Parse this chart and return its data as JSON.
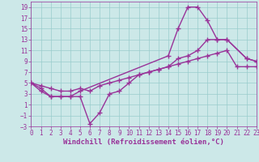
{
  "xlabel": "Windchill (Refroidissement éolien,°C)",
  "ylabel": "",
  "bg_color": "#cce8e8",
  "line_color": "#993399",
  "grid_color": "#99cccc",
  "xlim": [
    0,
    23
  ],
  "ylim": [
    -3,
    20
  ],
  "xticks": [
    0,
    1,
    2,
    3,
    4,
    5,
    6,
    7,
    8,
    9,
    10,
    11,
    12,
    13,
    14,
    15,
    16,
    17,
    18,
    19,
    20,
    21,
    22,
    23
  ],
  "yticks": [
    -3,
    -1,
    1,
    3,
    5,
    7,
    9,
    11,
    13,
    15,
    17,
    19
  ],
  "line1_x": [
    0,
    1,
    2,
    3,
    4,
    5,
    14,
    15,
    16,
    17,
    18,
    19,
    20,
    22,
    23
  ],
  "line1_y": [
    5,
    4,
    2.5,
    2.5,
    2.5,
    3.5,
    10,
    15,
    19,
    19,
    16.5,
    13,
    13,
    9.5,
    9
  ],
  "line2_x": [
    0,
    1,
    2,
    3,
    4,
    5,
    6,
    7,
    8,
    9,
    10,
    11,
    12,
    13,
    14,
    15,
    16,
    17,
    18,
    19,
    20,
    22,
    23
  ],
  "line2_y": [
    5,
    3.5,
    2.5,
    2.5,
    2.5,
    2.5,
    -2.5,
    -0.5,
    3,
    3.5,
    5,
    6.5,
    7,
    7.5,
    8,
    9.5,
    10,
    11,
    13,
    13,
    13,
    9.5,
    9
  ],
  "line3_x": [
    0,
    1,
    2,
    3,
    4,
    5,
    6,
    7,
    8,
    9,
    10,
    11,
    12,
    13,
    14,
    15,
    16,
    17,
    18,
    19,
    20,
    21,
    22,
    23
  ],
  "line3_y": [
    5,
    4.5,
    4,
    3.5,
    3.5,
    4,
    3.5,
    4.5,
    5,
    5.5,
    6,
    6.5,
    7,
    7.5,
    8,
    8.5,
    9,
    9.5,
    10,
    10.5,
    11,
    8,
    8,
    8
  ],
  "marker": "+",
  "markersize": 4,
  "linewidth": 1.0,
  "tick_fontsize": 5.5,
  "label_fontsize": 6.5,
  "fig_width": 3.2,
  "fig_height": 2.0,
  "dpi": 100
}
